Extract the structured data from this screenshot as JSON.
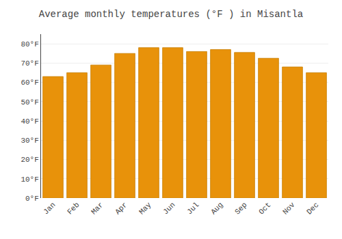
{
  "chart_data": {
    "type": "bar",
    "title": "Average monthly temperatures (°F ) in Misantla",
    "categories": [
      "Jan",
      "Feb",
      "Mar",
      "Apr",
      "May",
      "Jun",
      "Jul",
      "Aug",
      "Sep",
      "Oct",
      "Nov",
      "Dec"
    ],
    "values": [
      63,
      65,
      69,
      75,
      78,
      78,
      76,
      77,
      75.5,
      72.5,
      68,
      65
    ],
    "color": "#E8920A",
    "ylim": [
      0,
      85
    ],
    "yticks": [
      {
        "value": 0,
        "label": "0°F"
      },
      {
        "value": 10,
        "label": "10°F"
      },
      {
        "value": 20,
        "label": "20°F"
      },
      {
        "value": 30,
        "label": "30°F"
      },
      {
        "value": 40,
        "label": "40°F"
      },
      {
        "value": 50,
        "label": "50°F"
      },
      {
        "value": 60,
        "label": "60°F"
      },
      {
        "value": 70,
        "label": "70°F"
      },
      {
        "value": 80,
        "label": "80°F"
      }
    ],
    "grid": true
  }
}
